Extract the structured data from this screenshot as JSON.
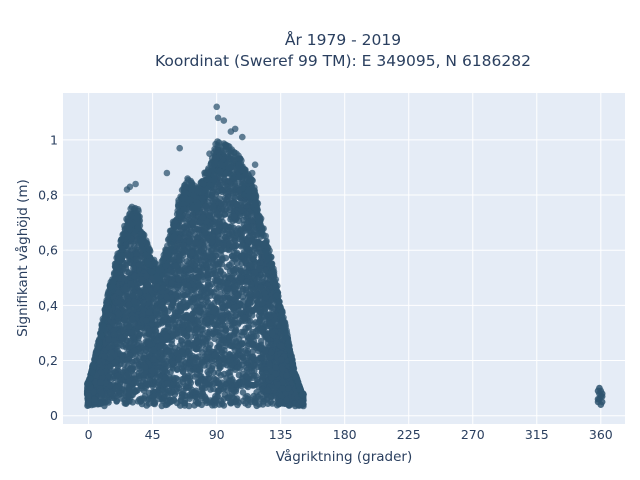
{
  "chart_data": {
    "type": "scatter",
    "title_line1": "År 1979 - 2019",
    "title_line2": "Koordinat (Sweref 99 TM): E 349095, N 6186282",
    "xlabel": "Vågriktning (grader)",
    "ylabel": "Signifikant våghöjd (m)",
    "xlim": [
      -18,
      377
    ],
    "ylim": [
      -0.03,
      1.17
    ],
    "xticks": [
      0,
      45,
      90,
      135,
      180,
      225,
      270,
      315,
      360
    ],
    "xtick_labels": [
      "0",
      "45",
      "90",
      "135",
      "180",
      "225",
      "270",
      "315",
      "360"
    ],
    "yticks": [
      0,
      0.2,
      0.4,
      0.6,
      0.8,
      1
    ],
    "ytick_labels": [
      "0",
      "0,2",
      "0,4",
      "0,6",
      "0,8",
      "1"
    ],
    "grid": true,
    "marker_color": "#2f5570",
    "plot_background": "#e5ecf6",
    "envelope": {
      "x": [
        0,
        5,
        10,
        15,
        20,
        25,
        30,
        35,
        40,
        45,
        50,
        55,
        60,
        65,
        70,
        75,
        80,
        85,
        90,
        95,
        100,
        105,
        110,
        115,
        120,
        125,
        130,
        135,
        140,
        145,
        150
      ],
      "y_max": [
        0.12,
        0.22,
        0.34,
        0.46,
        0.56,
        0.66,
        0.74,
        0.72,
        0.62,
        0.55,
        0.52,
        0.6,
        0.7,
        0.78,
        0.84,
        0.8,
        0.84,
        0.88,
        0.96,
        0.95,
        0.94,
        0.92,
        0.86,
        0.84,
        0.72,
        0.62,
        0.52,
        0.4,
        0.28,
        0.15,
        0.08
      ]
    },
    "outliers": {
      "x": [
        90,
        91,
        95,
        100,
        103,
        108,
        64,
        55,
        33,
        29,
        27,
        85,
        115,
        117
      ],
      "y": [
        1.12,
        1.08,
        1.07,
        1.03,
        1.04,
        1.01,
        0.97,
        0.88,
        0.84,
        0.83,
        0.82,
        0.95,
        0.88,
        0.91
      ]
    },
    "cluster_360": {
      "x": [
        358,
        359,
        360,
        361,
        358,
        359,
        360,
        361,
        359,
        360,
        358,
        361
      ],
      "y": [
        0.05,
        0.06,
        0.07,
        0.08,
        0.09,
        0.1,
        0.04,
        0.05,
        0.08,
        0.09,
        0.06,
        0.07
      ]
    }
  }
}
